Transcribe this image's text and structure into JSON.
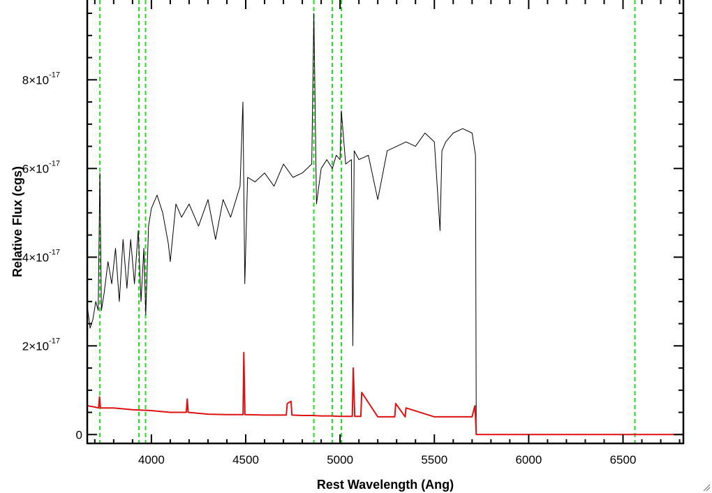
{
  "chart_data": {
    "type": "line",
    "xlabel": "Rest Wavelength (Ang)",
    "ylabel": "Relative Flux (cgs)",
    "xlim": [
      3660,
      6820
    ],
    "ylim": [
      -2e-18,
      9.8e-17
    ],
    "x_ticks": [
      {
        "value": 4000,
        "label": "4000"
      },
      {
        "value": 4500,
        "label": "4500"
      },
      {
        "value": 5000,
        "label": "5000"
      },
      {
        "value": 5500,
        "label": "5500"
      },
      {
        "value": 6000,
        "label": "6000"
      },
      {
        "value": 6500,
        "label": "6500"
      }
    ],
    "x_minor_step": 100,
    "y_ticks": [
      {
        "value": 0,
        "mantissa": "0",
        "exponent": ""
      },
      {
        "value": 2e-17,
        "mantissa": "2×10",
        "exponent": "-17"
      },
      {
        "value": 4e-17,
        "mantissa": "4×10",
        "exponent": "-17"
      },
      {
        "value": 6e-17,
        "mantissa": "6×10",
        "exponent": "-17"
      },
      {
        "value": 8e-17,
        "mantissa": "8×10",
        "exponent": "-17"
      }
    ],
    "y_minor_step": 5e-18,
    "grid": false,
    "legend": "none",
    "colors": {
      "flux": "#000000",
      "error": "#dd1111",
      "lines": "#22dd22"
    },
    "reference_lines_x": [
      3727,
      3934,
      3969,
      4861,
      4959,
      5007,
      6563
    ],
    "series": [
      {
        "role": "flux",
        "color": "#000000",
        "x": [
          3660,
          3675,
          3690,
          3705,
          3718,
          3727,
          3735,
          3750,
          3770,
          3790,
          3810,
          3830,
          3850,
          3870,
          3890,
          3910,
          3930,
          3945,
          3960,
          3970,
          3985,
          4000,
          4030,
          4060,
          4090,
          4100,
          4130,
          4160,
          4200,
          4250,
          4300,
          4340,
          4380,
          4420,
          4470,
          4485,
          4495,
          4510,
          4550,
          4600,
          4650,
          4700,
          4750,
          4800,
          4850,
          4861,
          4875,
          4900,
          4930,
          4959,
          4980,
          5000,
          5007,
          5030,
          5060,
          5068,
          5075,
          5100,
          5150,
          5200,
          5250,
          5300,
          5350,
          5400,
          5450,
          5500,
          5530,
          5540,
          5560,
          5600,
          5650,
          5700,
          5718,
          5722,
          5730,
          6000,
          6500,
          6820
        ],
        "y": [
          2.9e-17,
          2.4e-17,
          2.6e-17,
          3e-17,
          2.8e-17,
          5.9e-17,
          2.8e-17,
          3.2e-17,
          3.9e-17,
          3.4e-17,
          4.2e-17,
          3e-17,
          4.4e-17,
          3.3e-17,
          4.4e-17,
          3.4e-17,
          4.6e-17,
          3e-17,
          4.2e-17,
          2.7e-17,
          4.7e-17,
          5.1e-17,
          5.4e-17,
          5e-17,
          4.3e-17,
          3.9e-17,
          5.2e-17,
          4.9e-17,
          5.2e-17,
          4.7e-17,
          5.3e-17,
          4.4e-17,
          5.3e-17,
          4.9e-17,
          5.6e-17,
          7.5e-17,
          3.4e-17,
          5.8e-17,
          5.7e-17,
          5.9e-17,
          5.6e-17,
          6.1e-17,
          5.8e-17,
          5.9e-17,
          6.1e-17,
          9.5e-17,
          5.2e-17,
          6e-17,
          6.2e-17,
          6e-17,
          6.3e-17,
          6.2e-17,
          7.3e-17,
          6.1e-17,
          6.2e-17,
          2e-17,
          6.4e-17,
          6.2e-17,
          6.3e-17,
          5.3e-17,
          6.4e-17,
          6.5e-17,
          6.6e-17,
          6.5e-17,
          6.8e-17,
          6.6e-17,
          4.6e-17,
          6.4e-17,
          6.6e-17,
          6.8e-17,
          6.9e-17,
          6.8e-17,
          6.3e-17,
          0,
          0,
          0,
          0,
          0
        ]
      },
      {
        "role": "error",
        "color": "#dd1111",
        "x": [
          3660,
          3700,
          3720,
          3725,
          3730,
          3800,
          3900,
          4000,
          4100,
          4185,
          4190,
          4195,
          4300,
          4400,
          4486,
          4490,
          4496,
          4600,
          4715,
          4720,
          4740,
          4745,
          4800,
          4850,
          4900,
          4950,
          5000,
          5050,
          5065,
          5070,
          5078,
          5110,
          5115,
          5200,
          5290,
          5295,
          5345,
          5350,
          5500,
          5600,
          5700,
          5715,
          5718,
          5722,
          6000,
          6500,
          6820
        ],
        "y": [
          6.5e-18,
          6.2e-18,
          6e-18,
          8.5e-18,
          6e-18,
          6e-18,
          5.6e-18,
          5.4e-18,
          5e-18,
          5e-18,
          8e-18,
          5e-18,
          4.6e-18,
          4.5e-18,
          4.5e-18,
          1.85e-17,
          4.5e-18,
          4.4e-18,
          4.4e-18,
          7e-18,
          7.5e-18,
          4.4e-18,
          4.3e-18,
          4.3e-18,
          4.2e-18,
          4.2e-18,
          4.1e-18,
          4.1e-18,
          4.1e-18,
          1.5e-17,
          4.1e-18,
          4.1e-18,
          9.5e-18,
          4e-18,
          4e-18,
          7e-18,
          4e-18,
          6e-18,
          4e-18,
          4e-18,
          4e-18,
          6.5e-18,
          4e-18,
          0,
          0,
          0,
          0
        ]
      }
    ]
  }
}
